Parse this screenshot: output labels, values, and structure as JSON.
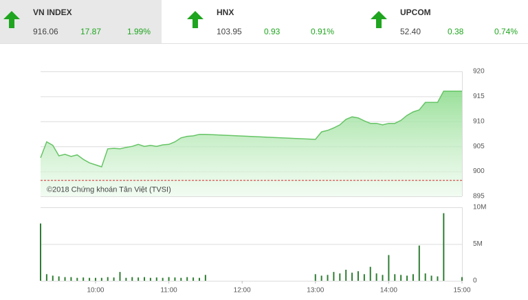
{
  "indices": [
    {
      "name": "VN INDEX",
      "value": "916.06",
      "change": "17.87",
      "percent": "1.99%"
    },
    {
      "name": "HNX",
      "value": "103.95",
      "change": "0.93",
      "percent": "0.91%"
    },
    {
      "name": "UPCOM",
      "value": "52.40",
      "change": "0.38",
      "percent": "0.74%"
    }
  ],
  "chart_data": [
    {
      "type": "area",
      "color": "#66c466",
      "annotation": "©2018 Chứng khoán Tân Việt (TVSI)",
      "reference": 898.2,
      "reference_color": "#d62728",
      "x": [
        "09:15",
        "09:20",
        "09:25",
        "09:30",
        "09:35",
        "09:40",
        "09:45",
        "09:50",
        "09:55",
        "10:00",
        "10:05",
        "10:10",
        "10:15",
        "10:20",
        "10:25",
        "10:30",
        "10:35",
        "10:40",
        "10:45",
        "10:50",
        "10:55",
        "11:00",
        "11:05",
        "11:10",
        "11:15",
        "11:20",
        "11:25",
        "11:30",
        "13:00",
        "13:05",
        "13:10",
        "13:15",
        "13:20",
        "13:25",
        "13:30",
        "13:35",
        "13:40",
        "13:45",
        "13:50",
        "13:55",
        "14:00",
        "14:05",
        "14:10",
        "14:15",
        "14:20",
        "14:25",
        "14:30",
        "14:35",
        "14:40",
        "14:45",
        "15:00"
      ],
      "values": [
        902.7,
        905.9,
        905.2,
        903.1,
        903.4,
        903.0,
        903.3,
        902.4,
        901.7,
        901.3,
        900.9,
        904.5,
        904.6,
        904.5,
        904.8,
        905.0,
        905.4,
        905.0,
        905.2,
        905.0,
        905.3,
        905.4,
        905.9,
        906.7,
        907.0,
        907.1,
        907.4,
        907.4,
        906.4,
        907.9,
        908.2,
        908.7,
        909.3,
        910.4,
        910.9,
        910.7,
        910.1,
        909.6,
        909.6,
        909.3,
        909.6,
        909.6,
        910.2,
        911.2,
        911.9,
        912.3,
        913.8,
        913.8,
        913.8,
        916.06,
        916.06
      ],
      "xlim": [
        "09:15",
        "15:00"
      ],
      "ylim": [
        895,
        920
      ],
      "yticks": [
        895,
        900,
        905,
        910,
        915,
        920
      ],
      "grid": true
    },
    {
      "type": "bar",
      "color": "#2e7d32",
      "x": [
        "09:15",
        "09:20",
        "09:25",
        "09:30",
        "09:35",
        "09:40",
        "09:45",
        "09:50",
        "09:55",
        "10:00",
        "10:05",
        "10:10",
        "10:15",
        "10:20",
        "10:25",
        "10:30",
        "10:35",
        "10:40",
        "10:45",
        "10:50",
        "10:55",
        "11:00",
        "11:05",
        "11:10",
        "11:15",
        "11:20",
        "11:25",
        "11:30",
        "13:00",
        "13:05",
        "13:10",
        "13:15",
        "13:20",
        "13:25",
        "13:30",
        "13:35",
        "13:40",
        "13:45",
        "13:50",
        "13:55",
        "14:00",
        "14:05",
        "14:10",
        "14:15",
        "14:20",
        "14:25",
        "14:30",
        "14:35",
        "14:40",
        "14:45",
        "15:00"
      ],
      "values": [
        7800000,
        900000,
        700000,
        600000,
        500000,
        500000,
        400000,
        450000,
        400000,
        400000,
        400000,
        500000,
        450000,
        1200000,
        400000,
        500000,
        450000,
        500000,
        400000,
        450000,
        400000,
        500000,
        450000,
        400000,
        500000,
        450000,
        400000,
        800000,
        900000,
        700000,
        800000,
        1200000,
        1000000,
        1500000,
        1100000,
        1300000,
        900000,
        1900000,
        1000000,
        800000,
        3500000,
        900000,
        800000,
        700000,
        900000,
        4800000,
        1000000,
        700000,
        600000,
        9200000,
        500000
      ],
      "xlim": [
        "09:15",
        "15:00"
      ],
      "ylim": [
        0,
        10000000
      ],
      "yticks": [
        0,
        {
          "value": 5000000,
          "label": "5M"
        },
        {
          "value": 10000000,
          "label": "10M"
        }
      ],
      "xticks": [
        "10:00",
        "11:00",
        "12:00",
        "13:00",
        "14:00",
        "15:00"
      ],
      "grid": true
    }
  ]
}
